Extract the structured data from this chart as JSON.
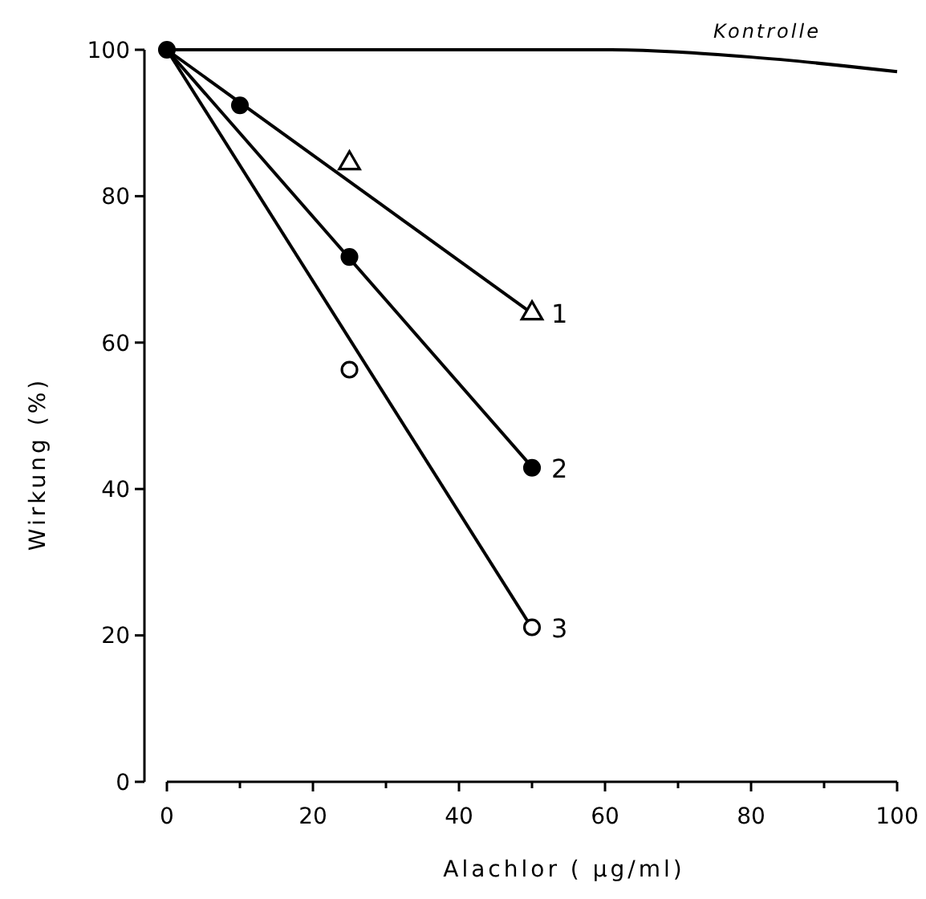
{
  "chart_data": {
    "type": "line",
    "xlabel": "Alachlor ( µg/ml)",
    "ylabel": "Wirkung (%)",
    "xlim": [
      0,
      100
    ],
    "ylim": [
      0,
      100
    ],
    "xticks": [
      0,
      {
        "value": 10,
        "label": null
      },
      20,
      {
        "value": 30,
        "label": null
      },
      40,
      {
        "value": 50,
        "label": null
      },
      60,
      {
        "value": 70,
        "label": null
      },
      80,
      {
        "value": 90,
        "label": null
      },
      100
    ],
    "yticks": [
      0,
      20,
      40,
      60,
      80,
      100
    ],
    "series": [
      {
        "name": "Kontrolle",
        "color": "#000000",
        "marker": "none",
        "x": [
          0,
          40,
          60,
          80,
          100
        ],
        "values": [
          100,
          100,
          100,
          99,
          97
        ]
      },
      {
        "color": "#000000",
        "marker": "none",
        "x": [
          0,
          50
        ],
        "values": [
          100,
          64
        ]
      },
      {
        "color": "#000000",
        "marker": "none",
        "x": [
          0,
          50
        ],
        "values": [
          100,
          43
        ]
      },
      {
        "color": "#000000",
        "marker": "none",
        "x": [
          0,
          50
        ],
        "values": [
          100,
          21
        ]
      },
      {
        "name": "1",
        "type": "scatter",
        "color": "#ffffff",
        "marker": "triangle",
        "x": [
          25,
          50
        ],
        "values": [
          84.5,
          64
        ]
      },
      {
        "name": "2",
        "type": "scatter",
        "color": "#000000",
        "marker": "circle",
        "x": [
          0,
          10,
          25,
          50
        ],
        "values": [
          100,
          92.4,
          71.7,
          42.9
        ]
      },
      {
        "name": "3",
        "type": "scatter",
        "color": "#ffffff",
        "marker": "circle",
        "x": [
          25,
          50
        ],
        "values": [
          56.3,
          21.1
        ]
      }
    ]
  }
}
